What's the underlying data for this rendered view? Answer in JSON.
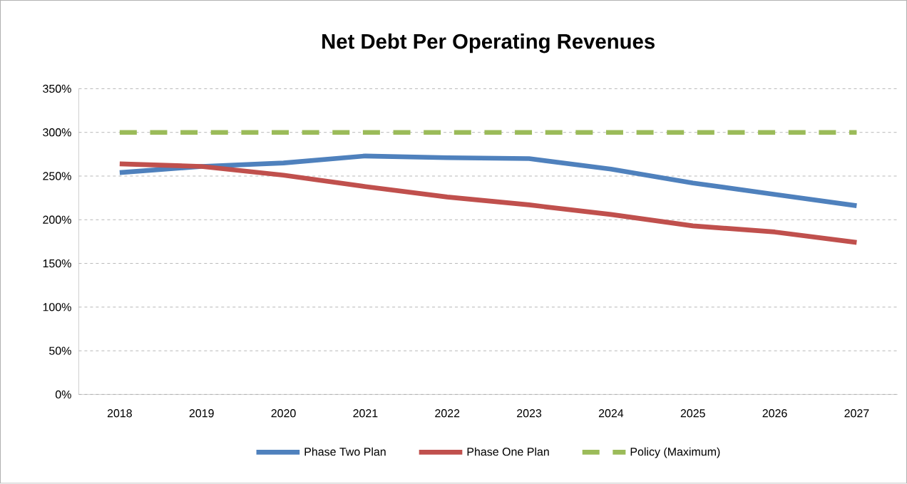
{
  "chart_data": {
    "type": "line",
    "title": "Net Debt Per Operating Revenues",
    "categories": [
      "2018",
      "2019",
      "2020",
      "2021",
      "2022",
      "2023",
      "2024",
      "2025",
      "2026",
      "2027"
    ],
    "series": [
      {
        "name": "Phase Two Plan",
        "color": "#4f81bd",
        "line_style": "solid",
        "values": [
          254,
          261,
          265,
          273,
          271,
          270,
          258,
          242,
          229,
          216
        ]
      },
      {
        "name": "Phase One Plan",
        "color": "#c0504d",
        "line_style": "solid",
        "values": [
          264,
          261,
          251,
          238,
          226,
          217,
          206,
          193,
          186,
          174
        ]
      },
      {
        "name": "Policy (Maximum)",
        "color": "#9bbb59",
        "line_style": "dashed",
        "values": [
          300,
          300,
          300,
          300,
          300,
          300,
          300,
          300,
          300,
          300
        ]
      }
    ],
    "ylim": [
      0,
      350
    ],
    "yticks": [
      {
        "value": 0,
        "label": "0%"
      },
      {
        "value": 50,
        "label": "50%"
      },
      {
        "value": 100,
        "label": "100%"
      },
      {
        "value": 150,
        "label": "150%"
      },
      {
        "value": 200,
        "label": "200%"
      },
      {
        "value": 250,
        "label": "250%"
      },
      {
        "value": 300,
        "label": "300%"
      },
      {
        "value": 350,
        "label": "350%"
      }
    ],
    "grid": "y",
    "legend": "bottom",
    "marker": "none"
  }
}
